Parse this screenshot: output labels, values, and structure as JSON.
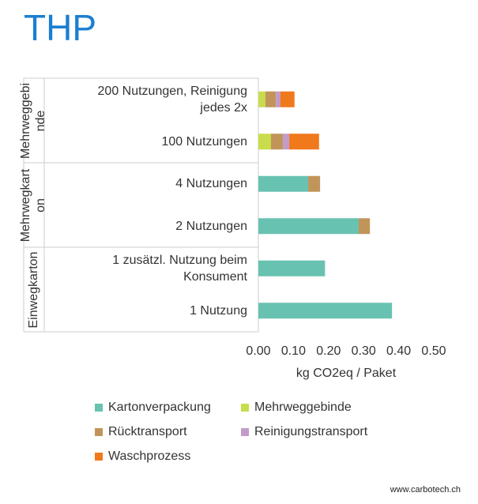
{
  "chart_data": {
    "type": "stacked-barh",
    "title": "THP",
    "groups": [
      {
        "name": "Mehrweggebinde",
        "categories": [
          "200 Nutzungen, Reinigung jedes 2x",
          "100 Nutzungen"
        ]
      },
      {
        "name": "Mehrwegkarton",
        "categories": [
          "4 Nutzungen",
          "2 Nutzungen"
        ]
      },
      {
        "name": "Einwegkarton",
        "categories": [
          "1 zusätzl. Nutzung beim Konsument",
          "1 Nutzung"
        ]
      }
    ],
    "series": [
      {
        "name": "Kartonverpackung",
        "color": "#68c2b1",
        "values": [
          0,
          0,
          0.142,
          0.286,
          0.19,
          0.381
        ]
      },
      {
        "name": "Mehrweggebinde",
        "color": "#c9dc4c",
        "values": [
          0.02,
          0.036,
          0,
          0,
          0,
          0
        ]
      },
      {
        "name": "Rücktransport",
        "color": "#c1955a",
        "values": [
          0.03,
          0.034,
          0.034,
          0.032,
          0,
          0
        ]
      },
      {
        "name": "Reinigungstransport",
        "color": "#c29bc9",
        "values": [
          0.013,
          0.018,
          0,
          0,
          0,
          0
        ]
      },
      {
        "name": "Waschprozess",
        "color": "#f0791c",
        "values": [
          0.04,
          0.085,
          0,
          0,
          0,
          0
        ]
      }
    ],
    "x_label": "kg CO2eq / Paket",
    "xlim": [
      0,
      0.5
    ],
    "xticks": [
      {
        "value": 0,
        "label": "0.00"
      },
      {
        "value": 0.1,
        "label": "0.10"
      },
      {
        "value": 0.2,
        "label": "0.20"
      },
      {
        "value": 0.3,
        "label": "0.30"
      },
      {
        "value": 0.4,
        "label": "0.40"
      },
      {
        "value": 0.5,
        "label": "0.50"
      }
    ],
    "grid": false,
    "footer": "www.carbotech.ch"
  }
}
